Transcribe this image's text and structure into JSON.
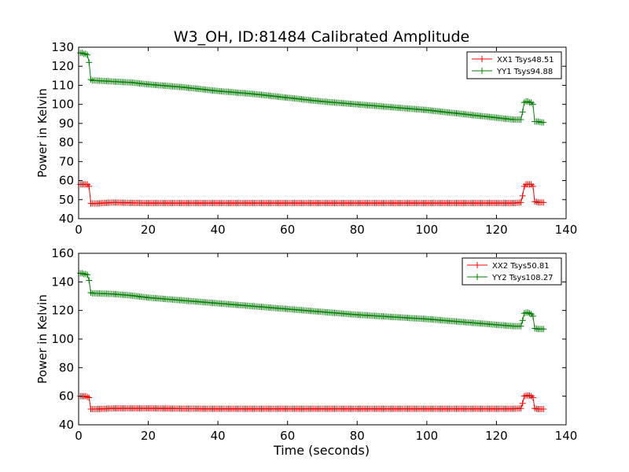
{
  "figure": {
    "title": "W3_OH, ID:81484 Calibrated Amplitude",
    "xlabel": "Time (seconds)"
  },
  "colors": {
    "XX": "#ff0000",
    "YY": "#008000",
    "axes": "#000000",
    "background": "#ffffff"
  },
  "chart_data": [
    {
      "type": "line",
      "title": "W3_OH, ID:81484 Calibrated Amplitude",
      "xlabel": "",
      "ylabel": "Power in Kelvin",
      "xlim": [
        0,
        140
      ],
      "ylim": [
        40,
        130
      ],
      "xticks": [
        0,
        20,
        40,
        60,
        80,
        100,
        120,
        140
      ],
      "yticks": [
        40,
        50,
        60,
        70,
        80,
        90,
        100,
        110,
        120,
        130
      ],
      "grid": false,
      "legend": "top-right",
      "marker": "+",
      "series": [
        {
          "name": "XX1 Tsys48.51",
          "color": "#ff0000",
          "x": [
            0.5,
            1,
            1.5,
            2,
            2.5,
            3,
            3.5,
            4,
            5,
            10,
            15,
            20,
            30,
            40,
            50,
            60,
            70,
            80,
            90,
            100,
            110,
            120,
            125,
            127,
            127.5,
            128,
            128.5,
            129,
            129.5,
            130,
            130.5,
            131,
            132,
            133,
            133.5
          ],
          "y": [
            58,
            58,
            58,
            58,
            58,
            57,
            48,
            48,
            48,
            48.5,
            48.3,
            48.2,
            48.2,
            48.2,
            48.2,
            48.2,
            48.2,
            48.2,
            48.2,
            48.2,
            48.2,
            48.2,
            48.2,
            48.5,
            52,
            57,
            58,
            58,
            58,
            58,
            57,
            49,
            48.5,
            48.5,
            48.5
          ]
        },
        {
          "name": "YY1 Tsys94.88",
          "color": "#008000",
          "x": [
            0.5,
            1,
            1.5,
            2,
            2.5,
            3,
            3.5,
            4,
            5,
            10,
            15,
            20,
            30,
            40,
            50,
            60,
            70,
            80,
            90,
            100,
            110,
            120,
            125,
            127,
            127.5,
            128,
            128.5,
            129,
            129.5,
            130,
            130.5,
            131,
            132,
            133,
            133.5
          ],
          "y": [
            127,
            127,
            126.5,
            126.5,
            126,
            122,
            113,
            112.5,
            112.5,
            112,
            111.5,
            110.5,
            109,
            107,
            105.5,
            103.5,
            101.5,
            100,
            98.5,
            97,
            95,
            93,
            92,
            92,
            96,
            101,
            101.5,
            101.5,
            101,
            101,
            100,
            91,
            91,
            90.5,
            90.5
          ]
        }
      ]
    },
    {
      "type": "line",
      "title": "",
      "xlabel": "Time (seconds)",
      "ylabel": "Power in Kelvin",
      "xlim": [
        0,
        140
      ],
      "ylim": [
        40,
        160
      ],
      "xticks": [
        0,
        20,
        40,
        60,
        80,
        100,
        120,
        140
      ],
      "yticks": [
        40,
        60,
        80,
        100,
        120,
        140,
        160
      ],
      "grid": false,
      "legend": "top-right",
      "marker": "+",
      "series": [
        {
          "name": "XX2 Tsys50.81",
          "color": "#ff0000",
          "x": [
            0.5,
            1,
            1.5,
            2,
            2.5,
            3,
            3.5,
            4,
            5,
            10,
            15,
            20,
            30,
            40,
            50,
            60,
            70,
            80,
            90,
            100,
            110,
            120,
            125,
            127,
            127.5,
            128,
            128.5,
            129,
            129.5,
            130,
            130.5,
            131,
            132,
            133,
            133.5
          ],
          "y": [
            60,
            60,
            60,
            60,
            59.5,
            59,
            51,
            51,
            51,
            51.5,
            51.5,
            51.5,
            51.3,
            51.2,
            51.2,
            51.2,
            51.2,
            51.2,
            51.2,
            51.2,
            51.2,
            51.2,
            51.2,
            51.5,
            55,
            60,
            60.5,
            60.5,
            60.5,
            60,
            59,
            51.5,
            51,
            51,
            51
          ]
        },
        {
          "name": "YY2 Tsys108.27",
          "color": "#008000",
          "x": [
            0.5,
            1,
            1.5,
            2,
            2.5,
            3,
            3.5,
            4,
            5,
            10,
            15,
            20,
            30,
            40,
            50,
            60,
            70,
            80,
            90,
            100,
            110,
            120,
            125,
            127,
            127.5,
            128,
            128.5,
            129,
            129.5,
            130,
            130.5,
            131,
            132,
            133,
            133.5
          ],
          "y": [
            146,
            146,
            145.5,
            145.5,
            145,
            141,
            132.5,
            132,
            132,
            131.5,
            130.5,
            129,
            127,
            125,
            123,
            121,
            119,
            117,
            115.5,
            114,
            112,
            110,
            109,
            109,
            113,
            118,
            118.5,
            118.5,
            118,
            117.5,
            116,
            107.5,
            107,
            107,
            107
          ]
        }
      ]
    }
  ]
}
